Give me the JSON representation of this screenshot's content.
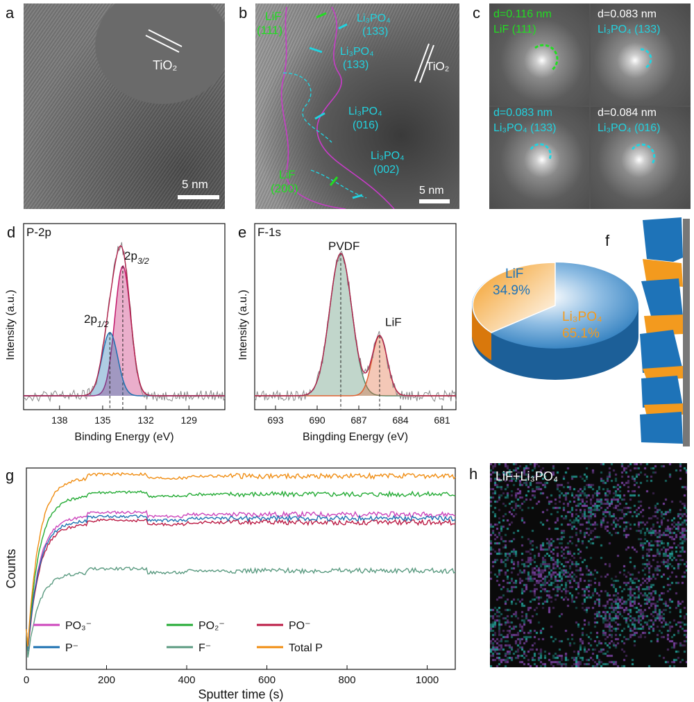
{
  "panels": {
    "a": {
      "label": "a",
      "scale_bar": "5 nm",
      "annotation": "TiO₂"
    },
    "b": {
      "label": "b",
      "scale_bar": "5 nm",
      "tio2": "TiO₂",
      "lif111_name": "LiF",
      "lif111_idx": "(111)",
      "lp133a_name": "Li₃PO₄",
      "lp133a_idx": "(133)",
      "lp133b_name": "Li₃PO₄",
      "lp133b_idx": "(133)",
      "lp016_name": "Li₃PO₄",
      "lp016_idx": "(016)",
      "lp002_name": "Li₃PO₄",
      "lp002_idx": "(002)",
      "lif200_name": "LiF",
      "lif200_idx": "(200)"
    },
    "c": {
      "label": "c",
      "q1_d": "d=0.116 nm",
      "q1_phase": "LiF (111)",
      "q2_d": "d=0.083 nm",
      "q2_phase": "Li₃PO₄ (133)",
      "q3_d": "d=0.083 nm",
      "q3_phase": "Li₃PO₄ (133)",
      "q4_d": "d=0.084 nm",
      "q4_phase": "Li₃PO₄ (016)"
    },
    "f": {
      "label": "f",
      "lif_label": "LiF",
      "lif_pct": "34.9%",
      "lp_label": "Li₃PO₄",
      "lp_pct": "65.1%"
    },
    "h": {
      "label": "h",
      "title": "LiF+Li₃PO₄"
    }
  },
  "colors": {
    "lif": "#f39a1e",
    "li3po4": "#1e73b8",
    "magenta": "#cc33cc",
    "cyan": "#22d3e0",
    "green": "#22dd22"
  },
  "chart_data": [
    {
      "id": "d",
      "type": "line",
      "panel_label": "d",
      "title": "P-2p",
      "xlabel": "Binding Energy (eV)",
      "ylabel": "Intensity (a.u.)",
      "xlim": [
        140.5,
        126.5
      ],
      "xticks": [
        "138",
        "135",
        "132",
        "129"
      ],
      "series": [
        {
          "name": "2p3/2",
          "center": 133.6,
          "height": 0.82,
          "width": 0.55,
          "color": "#c2186b"
        },
        {
          "name": "2p1/2",
          "center": 134.5,
          "height": 0.4,
          "width": 0.55,
          "color": "#1a6fb0"
        }
      ],
      "labels": {
        "p32_main": "2p",
        "p32_sub": "3/2",
        "p12_main": "2p",
        "p12_sub": "1/2"
      }
    },
    {
      "id": "e",
      "type": "line",
      "panel_label": "e",
      "title": "F-1s",
      "xlabel": "Bingding Energy (eV)",
      "ylabel": "Intensity (a.u.)",
      "xlim": [
        694.5,
        680
      ],
      "xticks": [
        "693",
        "690",
        "687",
        "684",
        "681"
      ],
      "series": [
        {
          "name": "PVDF",
          "center": 688.3,
          "height": 0.9,
          "width": 0.8,
          "color": "#4e8a6a"
        },
        {
          "name": "LiF",
          "center": 685.5,
          "height": 0.38,
          "width": 0.55,
          "color": "#e06030"
        }
      ]
    },
    {
      "id": "g",
      "type": "line",
      "panel_label": "g",
      "xlabel": "Sputter time (s)",
      "ylabel": "Counts",
      "xlim": [
        0,
        1070
      ],
      "xticks": [
        "0",
        "200",
        "400",
        "600",
        "800",
        "1000"
      ],
      "series": [
        {
          "name": "PO₃⁻",
          "color": "#cc44bb",
          "level": 0.76
        },
        {
          "name": "PO₂⁻",
          "color": "#22aa33",
          "level": 0.86
        },
        {
          "name": "PO⁻",
          "color": "#bb1a44",
          "level": 0.72
        },
        {
          "name": "P⁻",
          "color": "#1a6fb0",
          "level": 0.74
        },
        {
          "name": "F⁻",
          "color": "#5a9a80",
          "level": 0.48
        },
        {
          "name": "Total P",
          "color": "#f08c10",
          "level": 0.95
        }
      ]
    }
  ]
}
